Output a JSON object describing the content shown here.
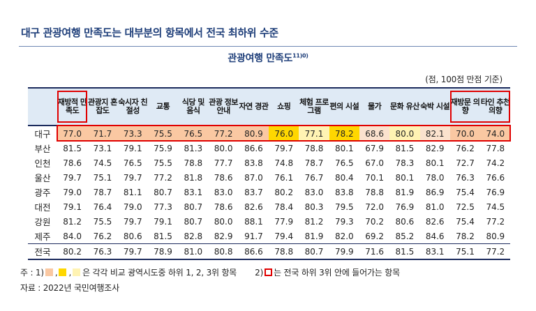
{
  "headline": "대구 관광여행 만족도는 대부분의 항목에서 전국 최하위 수준",
  "table_title": "관광여행 만족도",
  "table_title_note": "11)0)",
  "unit": "(점, 100점 만점 기준)",
  "columns": [
    "재방적 만족도",
    "관광지 혼잡도",
    "숙시자 친절성",
    "교통",
    "식당 및 음식",
    "관광 정보 안내",
    "자연 경관",
    "쇼핑",
    "체험 프로그램",
    "편의 시설",
    "물가",
    "문화 유산",
    "숙박 시설",
    "재방문 의향",
    "타인 추천 의향"
  ],
  "rows": [
    {
      "region": "대구",
      "values": [
        "77.0",
        "71.7",
        "73.3",
        "75.5",
        "76.5",
        "77.2",
        "80.9",
        "76.0",
        "77.1",
        "78.2",
        "68.6",
        "80.0",
        "82.1",
        "70.0",
        "74.0"
      ],
      "ranks": [
        1,
        1,
        1,
        1,
        1,
        1,
        1,
        2,
        3,
        2,
        0,
        3,
        0,
        1,
        1
      ]
    },
    {
      "region": "부산",
      "values": [
        "81.5",
        "73.1",
        "79.1",
        "75.9",
        "81.3",
        "80.0",
        "86.6",
        "79.7",
        "78.8",
        "80.1",
        "67.9",
        "81.5",
        "82.9",
        "76.2",
        "77.8"
      ]
    },
    {
      "region": "인천",
      "values": [
        "78.6",
        "74.5",
        "76.5",
        "75.5",
        "78.8",
        "77.7",
        "83.8",
        "74.8",
        "78.7",
        "76.5",
        "67.0",
        "78.3",
        "80.1",
        "72.7",
        "74.2"
      ]
    },
    {
      "region": "울산",
      "values": [
        "79.7",
        "75.1",
        "79.7",
        "77.2",
        "81.8",
        "78.6",
        "87.0",
        "76.1",
        "76.7",
        "80.4",
        "70.1",
        "80.1",
        "78.0",
        "76.3",
        "76.6"
      ]
    },
    {
      "region": "광주",
      "values": [
        "79.0",
        "78.7",
        "81.1",
        "80.7",
        "83.1",
        "83.0",
        "83.7",
        "80.2",
        "83.0",
        "83.8",
        "78.8",
        "81.9",
        "86.9",
        "75.4",
        "76.9"
      ]
    },
    {
      "region": "대전",
      "values": [
        "79.1",
        "76.4",
        "79.0",
        "77.3",
        "80.7",
        "78.6",
        "82.6",
        "78.4",
        "80.3",
        "79.5",
        "72.0",
        "76.9",
        "81.0",
        "72.5",
        "74.5"
      ]
    },
    {
      "region": "강원",
      "values": [
        "81.2",
        "75.5",
        "79.7",
        "79.1",
        "80.7",
        "80.0",
        "88.1",
        "77.9",
        "81.2",
        "79.3",
        "70.2",
        "80.6",
        "82.6",
        "75.4",
        "77.2"
      ]
    },
    {
      "region": "제주",
      "values": [
        "84.0",
        "76.2",
        "80.6",
        "81.5",
        "82.8",
        "82.9",
        "91.7",
        "79.4",
        "81.9",
        "82.0",
        "69.2",
        "85.2",
        "84.6",
        "78.2",
        "80.9"
      ]
    }
  ],
  "national": {
    "region": "전국",
    "values": [
      "80.2",
      "76.3",
      "79.7",
      "78.9",
      "81.0",
      "80.8",
      "86.6",
      "78.8",
      "80.7",
      "79.9",
      "71.6",
      "81.5",
      "83.1",
      "75.1",
      "77.2"
    ]
  },
  "note_prefix": "주 : 1)",
  "note_mid": "은 각각 비교 광역시도중 하위 1, 2, 3위 항목",
  "note_2_prefix": "2)",
  "note_2_text": "는 전국 하위 3위 안에 들어가는 항목",
  "source": "자료 : 2022년 국민여행조사",
  "colors": {
    "rank1": "#fac8a2",
    "rank2": "#ffd700",
    "rank3": "#fff3b3",
    "border": "#e00000",
    "header": "#dfeaf5",
    "navy": "#1b2a5c"
  }
}
